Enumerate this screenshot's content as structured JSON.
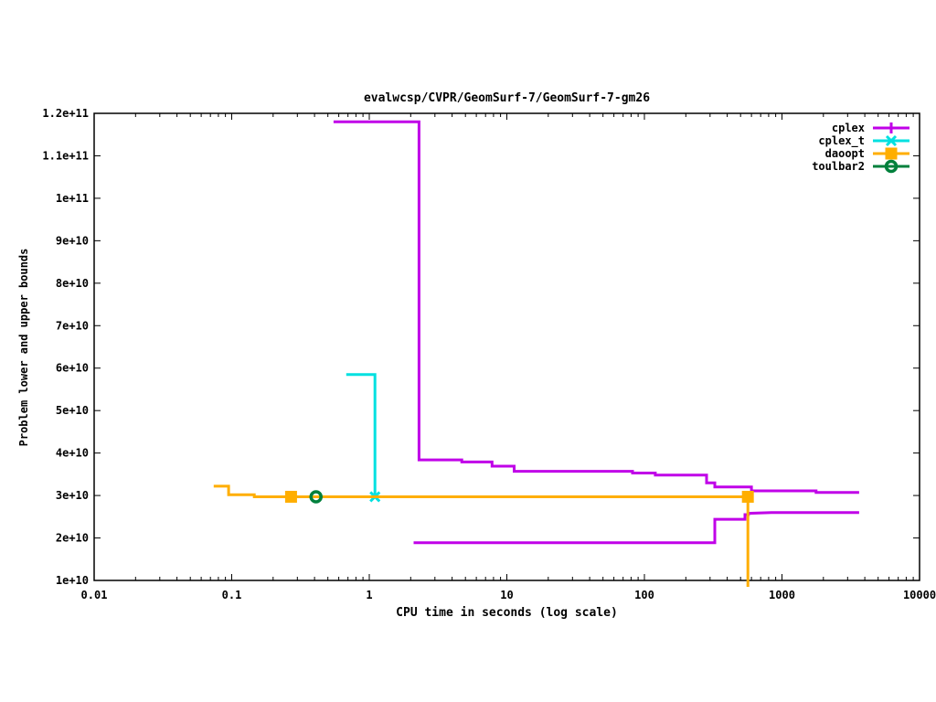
{
  "title": "evalwcsp/CVPR/GeomSurf-7/GeomSurf-7-gm26",
  "x_axis": {
    "label": "CPU time in seconds (log scale)",
    "scale": "log",
    "min": 0.01,
    "max": 10000,
    "tick_values": [
      0.01,
      0.1,
      1,
      10,
      100,
      1000,
      10000
    ],
    "tick_labels": [
      "0.01",
      "0.1",
      "1",
      "10",
      "100",
      "1000",
      "10000"
    ]
  },
  "y_axis": {
    "label": "Problem lower and upper bounds",
    "scale": "linear",
    "min": 10000000000.0,
    "max": 120000000000.0,
    "tick_values": [
      10000000000.0,
      20000000000.0,
      30000000000.0,
      40000000000.0,
      50000000000.0,
      60000000000.0,
      70000000000.0,
      80000000000.0,
      90000000000.0,
      100000000000.0,
      110000000000.0,
      120000000000.0
    ],
    "tick_labels": [
      "1e+10",
      "2e+10",
      "3e+10",
      "4e+10",
      "5e+10",
      "6e+10",
      "7e+10",
      "8e+10",
      "9e+10",
      "1e+11",
      "1.1e+11",
      "1.2e+11"
    ]
  },
  "legend": [
    {
      "label": "cplex",
      "color": "#c000e8",
      "marker": "plus"
    },
    {
      "label": "cplex_t",
      "color": "#00e0e0",
      "marker": "cross"
    },
    {
      "label": "daoopt",
      "color": "#ffae00",
      "marker": "square"
    },
    {
      "label": "toulbar2",
      "color": "#00803c",
      "marker": "circle"
    }
  ],
  "chart_data": {
    "type": "line",
    "title": "evalwcsp/CVPR/GeomSurf-7/GeomSurf-7-gm26",
    "xlabel": "CPU time in seconds (log scale)",
    "ylabel": "Problem lower and upper bounds",
    "xlim": [
      0.01,
      10000
    ],
    "ylim": [
      10000000000.0,
      120000000000.0
    ],
    "grid": false,
    "legend_position": "top-right-inside",
    "series": [
      {
        "name": "cplex upper bound",
        "legend": "cplex",
        "color": "#c000e8",
        "marker": "none",
        "points": [
          [
            0.55,
            118000000000.0
          ],
          [
            2.3,
            118000000000.0
          ],
          [
            2.3,
            38400000000.0
          ],
          [
            4.7,
            38400000000.0
          ],
          [
            4.7,
            37900000000.0
          ],
          [
            7.8,
            37900000000.0
          ],
          [
            7.8,
            36900000000.0
          ],
          [
            11.3,
            36900000000.0
          ],
          [
            11.3,
            35700000000.0
          ],
          [
            82,
            35700000000.0
          ],
          [
            82,
            35300000000.0
          ],
          [
            120,
            35300000000.0
          ],
          [
            120,
            34800000000.0
          ],
          [
            283,
            34800000000.0
          ],
          [
            283,
            33000000000.0
          ],
          [
            325,
            33000000000.0
          ],
          [
            325,
            32000000000.0
          ],
          [
            600,
            32000000000.0
          ],
          [
            600,
            31100000000.0
          ],
          [
            1770,
            31100000000.0
          ],
          [
            1770,
            30700000000.0
          ],
          [
            3640,
            30700000000.0
          ]
        ],
        "markers": []
      },
      {
        "name": "cplex lower bound",
        "legend": "cplex",
        "color": "#c000e8",
        "marker": "none",
        "points": [
          [
            2.1,
            18900000000.0
          ],
          [
            325,
            18900000000.0
          ],
          [
            325,
            24400000000.0
          ],
          [
            538,
            24400000000.0
          ],
          [
            538,
            25500000000.0
          ],
          [
            570,
            25500000000.0
          ],
          [
            570,
            25800000000.0
          ],
          [
            840,
            26000000000.0
          ],
          [
            3640,
            26000000000.0
          ]
        ],
        "markers": []
      },
      {
        "name": "cplex_t bounds",
        "legend": "cplex_t",
        "color": "#00e0e0",
        "marker": "cross",
        "points": [
          [
            0.68,
            58500000000.0
          ],
          [
            1.1,
            58500000000.0
          ],
          [
            1.1,
            29700000000.0
          ]
        ],
        "markers": [
          [
            1.1,
            29700000000.0
          ]
        ]
      },
      {
        "name": "daoopt bounds",
        "legend": "daoopt",
        "color": "#ffae00",
        "marker": "square",
        "points": [
          [
            0.074,
            32200000000.0
          ],
          [
            0.095,
            32200000000.0
          ],
          [
            0.095,
            30200000000.0
          ],
          [
            0.146,
            30200000000.0
          ],
          [
            0.146,
            29700000000.0
          ],
          [
            565,
            29700000000.0
          ],
          [
            565,
            8500000000.0
          ]
        ],
        "markers": [
          [
            0.27,
            29700000000.0
          ],
          [
            565,
            29700000000.0
          ]
        ]
      },
      {
        "name": "toulbar2 solution",
        "legend": "toulbar2",
        "color": "#00803c",
        "marker": "circle",
        "points": [],
        "markers": [
          [
            0.41,
            29700000000.0
          ]
        ]
      }
    ]
  }
}
